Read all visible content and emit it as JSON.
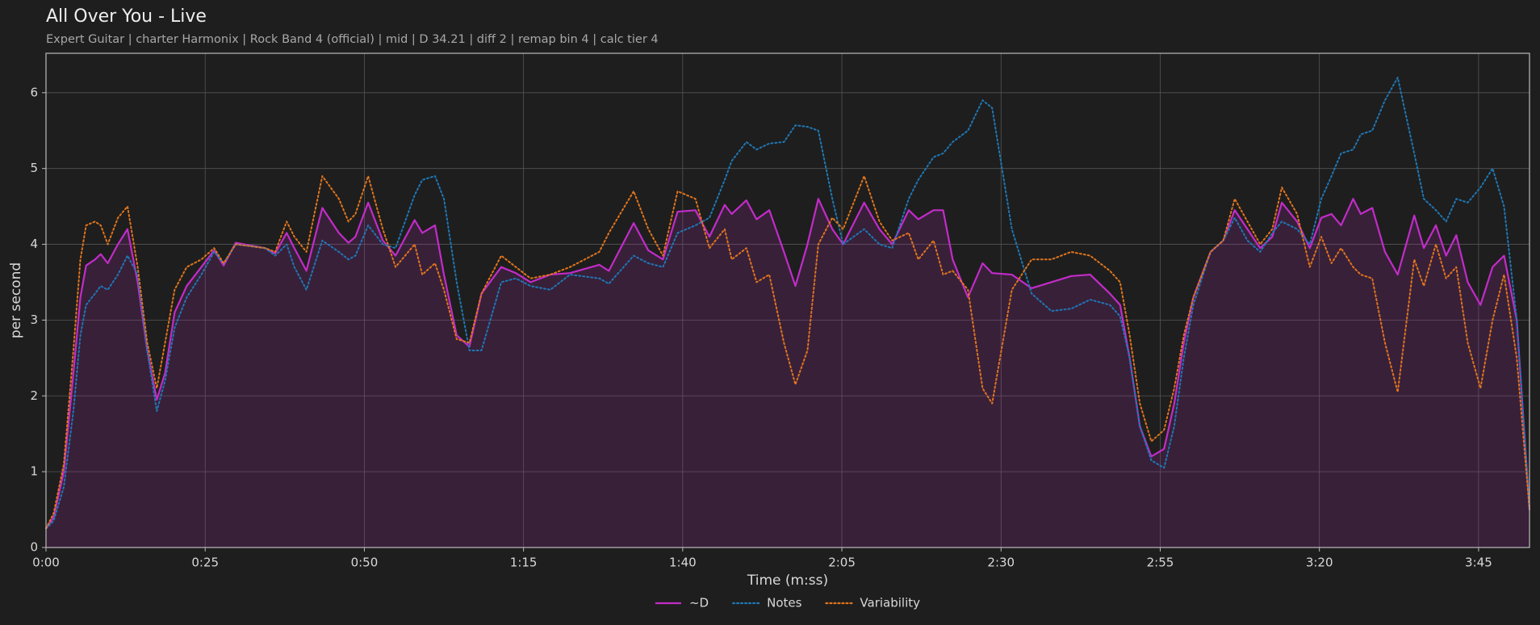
{
  "chart_data": {
    "type": "line",
    "title": "All Over You - Live",
    "subtitle": "Expert Guitar  |  charter Harmonix  |  Rock Band 4 (official)  |  mid  |  D 34.21  |  diff 2  |  remap bin 4  |  calc tier 4",
    "x_label": "Time (m:ss)",
    "y_label": "per second",
    "xlim": [
      0,
      233
    ],
    "ylim": [
      0,
      6.52
    ],
    "xticks": [
      {
        "value": 0,
        "label": "0:00"
      },
      {
        "value": 25,
        "label": "0:25"
      },
      {
        "value": 50,
        "label": "0:50"
      },
      {
        "value": 75,
        "label": "1:15"
      },
      {
        "value": 100,
        "label": "1:40"
      },
      {
        "value": 125,
        "label": "2:05"
      },
      {
        "value": 150,
        "label": "2:30"
      },
      {
        "value": 175,
        "label": "2:55"
      },
      {
        "value": 200,
        "label": "3:20"
      },
      {
        "value": 225,
        "label": "3:45"
      }
    ],
    "yticks": [
      0,
      1,
      2,
      3,
      4,
      5,
      6
    ],
    "grid": true,
    "legend": "bottom",
    "x": [
      0,
      1.2,
      2.8,
      4.3,
      5.4,
      6.3,
      7.7,
      8.6,
      9.7,
      11.3,
      12.8,
      14.4,
      15.9,
      17.4,
      18.7,
      20.2,
      22.1,
      24.4,
      26.4,
      27.9,
      29.8,
      34.4,
      36,
      37.8,
      39,
      40.9,
      43.4,
      46,
      47.5,
      48.6,
      50.6,
      52.9,
      54.9,
      57.9,
      59.1,
      61.1,
      62.5,
      64.5,
      66.5,
      68.4,
      71.5,
      73.8,
      76.1,
      79.2,
      82.3,
      86.9,
      88.4,
      92.3,
      94.6,
      96.9,
      99.2,
      102,
      104.2,
      106.6,
      107.7,
      110,
      111.6,
      113.6,
      115.9,
      117.7,
      119.6,
      121.3,
      123.5,
      125.2,
      128.5,
      130.9,
      132.9,
      135.5,
      137,
      139.4,
      140.9,
      142.4,
      144.8,
      147.1,
      148.6,
      151.7,
      154.8,
      157.9,
      161,
      164,
      167.1,
      168.7,
      170.2,
      171.8,
      173.6,
      175.6,
      177.2,
      178.7,
      180.2,
      182.9,
      184.9,
      186.7,
      188.7,
      190.7,
      192.6,
      194.1,
      196.5,
      198.5,
      200.3,
      201.9,
      203.4,
      205.3,
      206.5,
      208.3,
      210.3,
      212.3,
      214.9,
      216.4,
      218.3,
      219.9,
      221.5,
      223.3,
      225.3,
      227.2,
      229,
      231,
      233
    ],
    "series": [
      {
        "name": "~D",
        "color": "#c22cc8",
        "style": "solid",
        "fill": true,
        "values": [
          0.25,
          0.4,
          1.0,
          2.3,
          3.3,
          3.72,
          3.8,
          3.87,
          3.75,
          4.0,
          4.2,
          3.5,
          2.6,
          1.95,
          2.3,
          3.1,
          3.45,
          3.7,
          3.92,
          3.72,
          4.02,
          3.95,
          3.88,
          4.15,
          3.95,
          3.65,
          4.48,
          4.15,
          4.02,
          4.1,
          4.55,
          4.05,
          3.85,
          4.32,
          4.15,
          4.25,
          3.6,
          2.8,
          2.65,
          3.35,
          3.7,
          3.62,
          3.5,
          3.6,
          3.62,
          3.73,
          3.65,
          4.28,
          3.92,
          3.8,
          4.43,
          4.45,
          4.1,
          4.52,
          4.4,
          4.58,
          4.33,
          4.45,
          3.9,
          3.45,
          4.0,
          4.6,
          4.2,
          4.0,
          4.55,
          4.2,
          4.0,
          4.45,
          4.33,
          4.45,
          4.45,
          3.8,
          3.3,
          3.75,
          3.62,
          3.6,
          3.42,
          3.5,
          3.58,
          3.6,
          3.35,
          3.2,
          2.5,
          1.6,
          1.2,
          1.3,
          1.9,
          2.7,
          3.3,
          3.9,
          4.05,
          4.45,
          4.2,
          3.95,
          4.1,
          4.55,
          4.3,
          3.95,
          4.35,
          4.4,
          4.25,
          4.6,
          4.4,
          4.48,
          3.9,
          3.6,
          4.38,
          3.95,
          4.25,
          3.85,
          4.12,
          3.5,
          3.2,
          3.7,
          3.85,
          3.0,
          0.5
        ]
      },
      {
        "name": "Notes",
        "color": "#1f77b4",
        "style": "dotted",
        "values": [
          0.25,
          0.35,
          0.8,
          1.8,
          2.8,
          3.2,
          3.35,
          3.45,
          3.4,
          3.6,
          3.85,
          3.6,
          2.6,
          1.8,
          2.2,
          2.9,
          3.3,
          3.6,
          3.9,
          3.75,
          4.0,
          3.95,
          3.85,
          4.0,
          3.7,
          3.4,
          4.05,
          3.9,
          3.8,
          3.85,
          4.25,
          4.0,
          3.95,
          4.65,
          4.85,
          4.9,
          4.6,
          3.5,
          2.6,
          2.6,
          3.5,
          3.55,
          3.45,
          3.4,
          3.6,
          3.55,
          3.48,
          3.85,
          3.75,
          3.7,
          4.15,
          4.25,
          4.35,
          4.85,
          5.1,
          5.35,
          5.25,
          5.33,
          5.35,
          5.57,
          5.55,
          5.5,
          4.6,
          4.0,
          4.2,
          4.0,
          3.95,
          4.6,
          4.85,
          5.15,
          5.2,
          5.35,
          5.5,
          5.9,
          5.8,
          4.2,
          3.35,
          3.12,
          3.15,
          3.27,
          3.2,
          3.05,
          2.5,
          1.6,
          1.15,
          1.05,
          1.6,
          2.5,
          3.2,
          3.9,
          4.05,
          4.35,
          4.05,
          3.9,
          4.15,
          4.3,
          4.2,
          4.0,
          4.6,
          4.9,
          5.2,
          5.25,
          5.45,
          5.5,
          5.9,
          6.2,
          5.2,
          4.6,
          4.45,
          4.3,
          4.6,
          4.55,
          4.75,
          5.0,
          4.5,
          3.0,
          0.5
        ]
      },
      {
        "name": "Variability",
        "color": "#e0741c",
        "style": "dotted",
        "values": [
          0.25,
          0.45,
          1.1,
          2.6,
          3.8,
          4.25,
          4.3,
          4.25,
          4.0,
          4.35,
          4.5,
          3.7,
          2.7,
          2.1,
          2.7,
          3.4,
          3.7,
          3.8,
          3.95,
          3.75,
          4.0,
          3.95,
          3.9,
          4.3,
          4.1,
          3.9,
          4.9,
          4.6,
          4.3,
          4.4,
          4.9,
          4.2,
          3.7,
          4.0,
          3.6,
          3.75,
          3.4,
          2.75,
          2.7,
          3.35,
          3.85,
          3.7,
          3.55,
          3.6,
          3.7,
          3.9,
          4.15,
          4.7,
          4.2,
          3.85,
          4.7,
          4.6,
          3.95,
          4.2,
          3.8,
          3.95,
          3.5,
          3.6,
          2.7,
          2.15,
          2.6,
          4.0,
          4.35,
          4.2,
          4.9,
          4.3,
          4.05,
          4.15,
          3.8,
          4.05,
          3.6,
          3.65,
          3.4,
          2.1,
          1.9,
          3.4,
          3.8,
          3.8,
          3.9,
          3.85,
          3.65,
          3.5,
          2.8,
          1.9,
          1.4,
          1.55,
          2.1,
          2.8,
          3.3,
          3.9,
          4.05,
          4.6,
          4.3,
          4.0,
          4.2,
          4.75,
          4.4,
          3.7,
          4.1,
          3.75,
          3.95,
          3.7,
          3.6,
          3.55,
          2.7,
          2.05,
          3.8,
          3.45,
          4.0,
          3.55,
          3.7,
          2.7,
          2.1,
          3.0,
          3.6,
          2.5,
          0.5
        ]
      }
    ]
  }
}
